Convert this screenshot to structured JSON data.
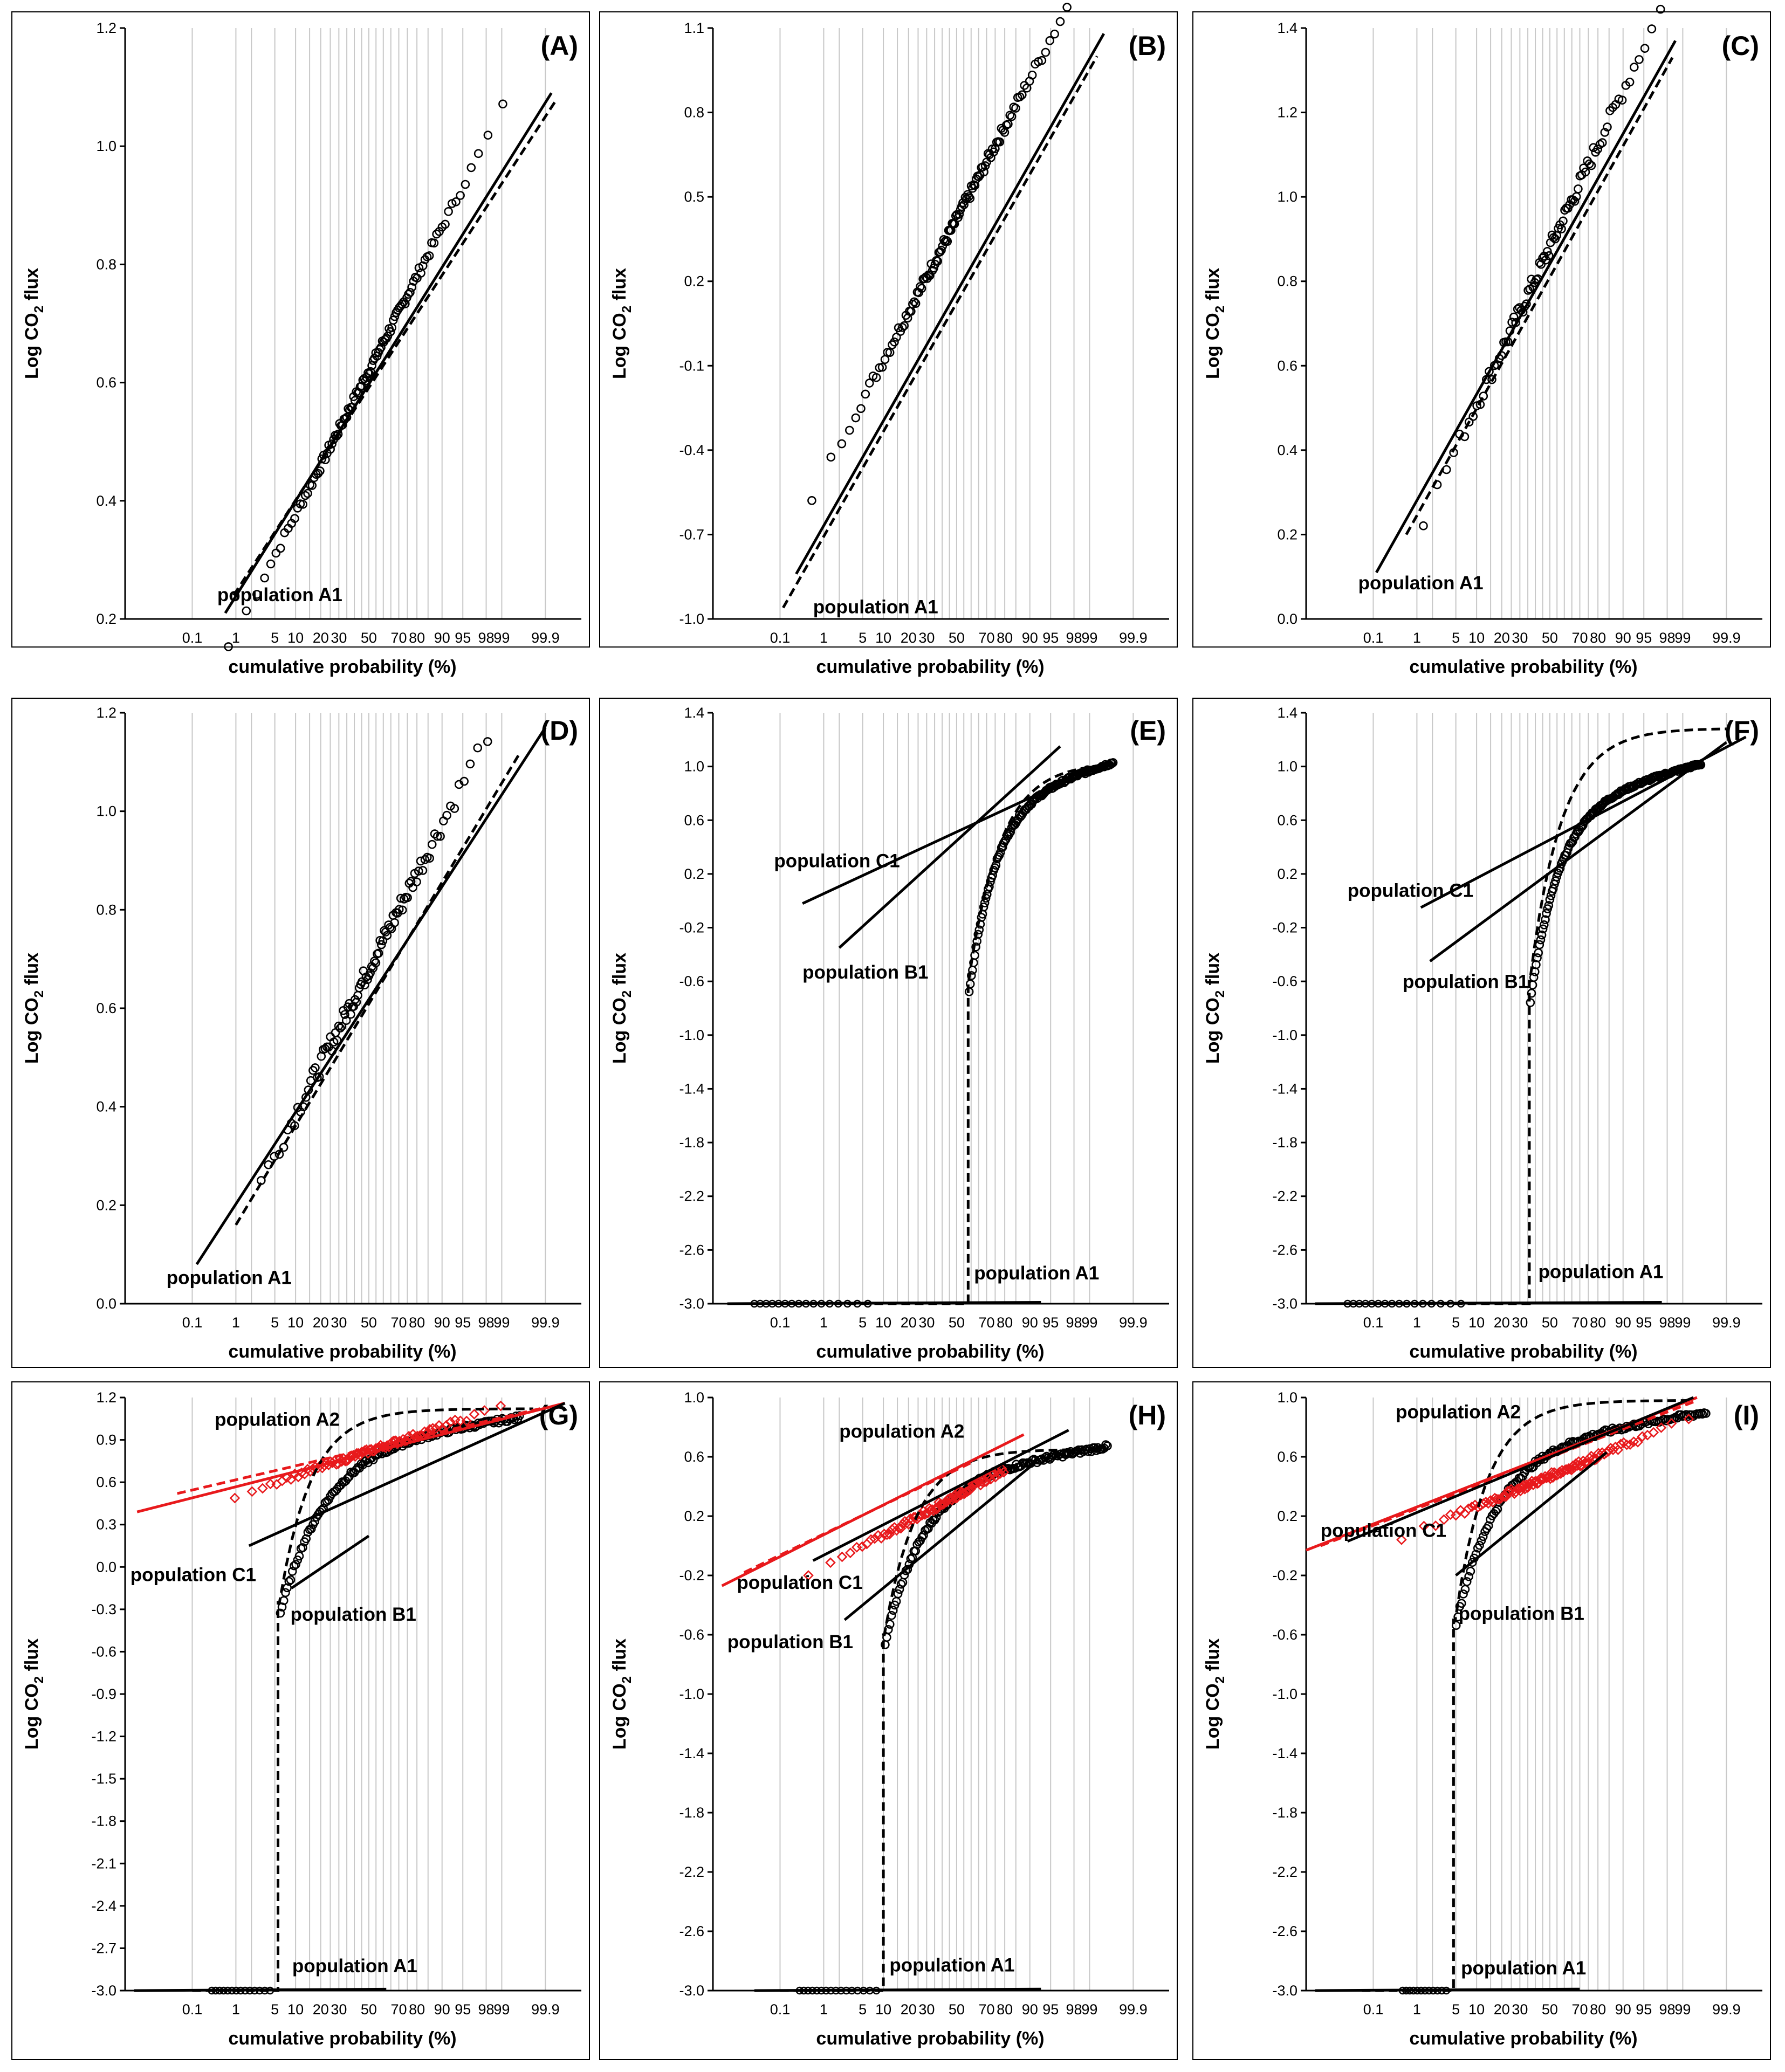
{
  "colors": {
    "black": "#000000",
    "red": "#e8191c",
    "grid": "#c8c8c8"
  },
  "x_axis": {
    "label": "cumulative probability (%)",
    "tick_labels": [
      "0.1",
      "1",
      "5",
      "10",
      "20",
      "30",
      "50",
      "70",
      "80",
      "90",
      "95",
      "98",
      "99",
      "99.9"
    ],
    "tick_values": [
      0.1,
      1,
      5,
      10,
      20,
      30,
      50,
      70,
      80,
      90,
      95,
      98,
      99,
      99.9
    ],
    "range_percent": [
      0.001,
      99.99
    ]
  },
  "y_axis_label": {
    "prefix": "Log CO",
    "subscript": "2",
    "suffix": " flux"
  },
  "chart_data": [
    {
      "id": "A",
      "title": "(A)",
      "type": "scatter",
      "y_ticks": [
        "0.2",
        "0.4",
        "0.6",
        "0.8",
        "1.0",
        "1.2"
      ],
      "ylim": [
        0.2,
        1.2
      ],
      "points": {
        "p_min": 0.25,
        "p_max": 99.5,
        "intercept": 0.62,
        "slope": 0.19,
        "n": 110,
        "noise": 0.008
      },
      "fit_lines": [
        {
          "name": "fit",
          "style": "solid",
          "color": "#000000",
          "p0": 0.6,
          "y0": 0.21,
          "p1": 99.93,
          "y1": 1.09
        },
        {
          "name": "cumulative",
          "style": "dashed",
          "color": "#000000",
          "p0": 0.9,
          "y0": 0.24,
          "p1": 99.95,
          "y1": 1.08
        }
      ],
      "labels": [
        {
          "text": "population A1",
          "p": 0.4,
          "y": 0.23
        }
      ]
    },
    {
      "id": "B",
      "title": "(B)",
      "type": "scatter",
      "y_ticks": [
        "-1.0",
        "-0.7",
        "-0.4",
        "-0.1",
        "0.2",
        "0.5",
        "0.8",
        "1.1"
      ],
      "ylim": [
        -1.0,
        1.1
      ],
      "points": {
        "p_min": 0.15,
        "p_max": 99.4,
        "intercept": 0.42,
        "slope": 0.39,
        "n": 120,
        "noise": 0.02
      },
      "fit_lines": [
        {
          "name": "fit",
          "style": "solid",
          "color": "#000000",
          "p0": 0.25,
          "y0": -0.84,
          "p1": 99.5,
          "y1": 1.08
        },
        {
          "name": "cumulative",
          "style": "dashed",
          "color": "#000000",
          "p0": 0.12,
          "y0": -0.96,
          "p1": 99.3,
          "y1": 1.0
        }
      ],
      "labels": [
        {
          "text": "population A1",
          "p": 0.6,
          "y": -0.98
        }
      ]
    },
    {
      "id": "C",
      "title": "(C)",
      "type": "scatter",
      "y_ticks": [
        "0.0",
        "0.2",
        "0.4",
        "0.6",
        "0.8",
        "1.0",
        "1.2",
        "1.4"
      ],
      "ylim": [
        0.0,
        1.4
      ],
      "points": {
        "p_min": 0.8,
        "p_max": 99.0,
        "intercept": 0.88,
        "slope": 0.29,
        "n": 90,
        "noise": 0.02
      },
      "fit_lines": [
        {
          "name": "fit",
          "style": "solid",
          "color": "#000000",
          "p0": 0.12,
          "y0": 0.11,
          "p1": 98.6,
          "y1": 1.37
        },
        {
          "name": "cumulative",
          "style": "dashed",
          "color": "#000000",
          "p0": 0.6,
          "y0": 0.2,
          "p1": 98.4,
          "y1": 1.33
        }
      ],
      "labels": [
        {
          "text": "population A1",
          "p": 0.04,
          "y": 0.07
        }
      ]
    },
    {
      "id": "D",
      "title": "(D)",
      "type": "scatter",
      "y_ticks": [
        "0.0",
        "0.2",
        "0.4",
        "0.6",
        "0.8",
        "1.0",
        "1.2"
      ],
      "ylim": [
        0.0,
        1.2
      ],
      "points": {
        "p_min": 2.5,
        "p_max": 98.6,
        "intercept": 0.68,
        "slope": 0.23,
        "n": 100,
        "noise": 0.02
      },
      "fit_lines": [
        {
          "name": "fit",
          "style": "solid",
          "color": "#000000",
          "p0": 0.13,
          "y0": 0.08,
          "p1": 99.9,
          "y1": 1.17
        },
        {
          "name": "cumulative",
          "style": "dashed",
          "color": "#000000",
          "p0": 1.0,
          "y0": 0.16,
          "p1": 99.6,
          "y1": 1.12
        }
      ],
      "labels": [
        {
          "text": "population A1",
          "p": 0.02,
          "y": 0.04
        }
      ]
    },
    {
      "id": "E",
      "title": "(E)",
      "type": "scatter",
      "y_ticks": [
        "-3.0",
        "-2.6",
        "-2.2",
        "-1.8",
        "-1.4",
        "-1.0",
        "-0.6",
        "-0.2",
        "0.2",
        "0.6",
        "1.0",
        "1.4"
      ],
      "ylim": [
        -3.0,
        1.4
      ],
      "points": {
        "zero_from": 0.02,
        "zero_to": 6,
        "zero_n": 16,
        "floor": -3.0,
        "jump_p": 58,
        "p_max": 99.7,
        "n": 130,
        "y_lo": -0.72,
        "y_hi": 1.03,
        "mid_y": 0.46,
        "curve": 2.2,
        "noise": 0.012
      },
      "fit_lines": [
        {
          "name": "population C1",
          "style": "solid",
          "color": "#000000",
          "p0": 0.35,
          "y0": -0.02,
          "p1": 97.5,
          "y1": 0.9
        },
        {
          "name": "population B1",
          "style": "solid",
          "color": "#000000",
          "p0": 2.0,
          "y0": -0.35,
          "p1": 96.5,
          "y1": 1.15
        },
        {
          "name": "population A1",
          "style": "solid",
          "color": "#000000",
          "p0": 0.003,
          "y0": -3.0,
          "p1": 93.0,
          "y1": -2.99
        }
      ],
      "cumulative": {
        "floor_p0": 0.1,
        "floor_p1": 57,
        "floor": -3.0,
        "jump_p": 58,
        "join_y": -0.6,
        "p_max": 99.2,
        "y_end": 1.0
      },
      "labels": [
        {
          "text": "population C1",
          "p": 0.07,
          "y": 0.25
        },
        {
          "text": "population B1",
          "p": 0.35,
          "y": -0.58
        },
        {
          "text": "population A1",
          "p": 62,
          "y": -2.82
        }
      ]
    },
    {
      "id": "F",
      "title": "(F)",
      "type": "scatter",
      "y_ticks": [
        "-3.0",
        "-2.6",
        "-2.2",
        "-1.8",
        "-1.4",
        "-1.0",
        "-0.6",
        "-0.2",
        "0.2",
        "0.6",
        "1.0",
        "1.4"
      ],
      "ylim": [
        -3.0,
        1.4
      ],
      "points": {
        "zero_from": 0.02,
        "zero_to": 6,
        "zero_n": 16,
        "floor": -3.0,
        "jump_p": 36,
        "p_max": 99.6,
        "n": 150,
        "y_lo": -0.78,
        "y_hi": 1.02,
        "mid_y": 0.55,
        "curve": 2.0,
        "noise": 0.01
      },
      "fit_lines": [
        {
          "name": "population C1",
          "style": "solid",
          "color": "#000000",
          "p0": 1.2,
          "y0": -0.05,
          "p1": 99.97,
          "y1": 1.22
        },
        {
          "name": "population B1",
          "style": "solid",
          "color": "#000000",
          "p0": 1.8,
          "y0": -0.45,
          "p1": 99.9,
          "y1": 1.18
        },
        {
          "name": "population A1",
          "style": "solid",
          "color": "#000000",
          "p0": 0.002,
          "y0": -3.0,
          "p1": 97.5,
          "y1": -2.99
        }
      ],
      "cumulative": {
        "floor_p0": 0.1,
        "floor_p1": 35,
        "floor": -3.0,
        "jump_p": 36,
        "join_y": -0.6,
        "p_max": 99.9,
        "y_end": 1.28
      },
      "labels": [
        {
          "text": "population C1",
          "p": 0.02,
          "y": 0.03
        },
        {
          "text": "population B1",
          "p": 0.5,
          "y": -0.65
        },
        {
          "text": "population A1",
          "p": 42,
          "y": -2.81
        }
      ]
    },
    {
      "id": "G",
      "title": "(G)",
      "type": "scatter",
      "y_ticks": [
        "-3.0",
        "-2.7",
        "-2.4",
        "-2.1",
        "-1.8",
        "-1.5",
        "-1.2",
        "-0.9",
        "-0.6",
        "-0.3",
        "0.0",
        "0.3",
        "0.6",
        "0.9",
        "1.2"
      ],
      "ylim": [
        -3.0,
        1.2
      ],
      "points": {
        "zero_from": 0.3,
        "zero_to": 4.2,
        "zero_n": 14,
        "floor": -3.0,
        "jump_p": 5.6,
        "p_max": 99.6,
        "n": 140,
        "y_lo": -0.35,
        "y_hi": 1.06,
        "mid_y": 0.52,
        "curve": 1.3,
        "noise": 0.015
      },
      "red_points": {
        "p_min": 0.4,
        "p_max": 99.5,
        "intercept": 0.82,
        "slope": 0.135,
        "n": 90,
        "noise": 0.018
      },
      "fit_lines": [
        {
          "name": "population A2",
          "style": "solid",
          "color": "#e8191c",
          "p0": 0.0025,
          "y0": 0.39,
          "p1": 99.97,
          "y1": 1.16
        },
        {
          "name": "population A2 cumulative",
          "style": "dashed",
          "color": "#e8191c",
          "p0": 0.04,
          "y0": 0.52,
          "p1": 99.9,
          "y1": 1.13
        },
        {
          "name": "population C1",
          "style": "solid",
          "color": "#000000",
          "p0": 1.8,
          "y0": 0.15,
          "p1": 99.97,
          "y1": 1.16
        },
        {
          "name": "population B1",
          "style": "solid",
          "color": "#000000",
          "p0": 8.8,
          "y0": -0.15,
          "p1": 50,
          "y1": 0.22
        },
        {
          "name": "population A1",
          "style": "solid",
          "color": "#000000",
          "p0": 0.002,
          "y0": -3.0,
          "p1": 62,
          "y1": -2.99
        }
      ],
      "cumulative": {
        "floor_p0": 0.1,
        "floor_p1": 5.3,
        "floor": -3.0,
        "jump_p": 5.6,
        "join_y": -0.25,
        "p_max": 99.8,
        "y_end": 1.12
      },
      "labels": [
        {
          "text": "population A2",
          "p": 0.35,
          "y": 1.0
        },
        {
          "text": "population C1",
          "p": 0.0015,
          "y": -0.1
        },
        {
          "text": "population B1",
          "p": 8.5,
          "y": -0.38
        },
        {
          "text": "population A1",
          "p": 9,
          "y": -2.87
        }
      ]
    },
    {
      "id": "H",
      "title": "(H)",
      "type": "scatter",
      "y_ticks": [
        "-3.0",
        "-2.6",
        "-2.2",
        "-1.8",
        "-1.4",
        "-1.0",
        "-0.6",
        "-0.2",
        "0.2",
        "0.6",
        "1.0"
      ],
      "ylim": [
        -3.0,
        1.0
      ],
      "points": {
        "zero_from": 0.3,
        "zero_to": 8,
        "zero_n": 16,
        "floor": -3.0,
        "jump_p": 10,
        "p_max": 99.6,
        "n": 140,
        "y_lo": -0.68,
        "y_hi": 0.67,
        "mid_y": 0.2,
        "curve": 1.5,
        "noise": 0.015
      },
      "red_points": {
        "p_min": 0.03,
        "p_max": 80,
        "intercept": 0.34,
        "slope": 0.21,
        "n": 90,
        "noise": 0.02
      },
      "fit_lines": [
        {
          "name": "population A2",
          "style": "solid",
          "color": "#e8191c",
          "p0": 0.002,
          "y0": -0.27,
          "p1": 88,
          "y1": 0.75
        },
        {
          "name": "population A2 cumulative",
          "style": "dashed",
          "color": "#e8191c",
          "p0": 0.01,
          "y0": -0.18,
          "p1": 60,
          "y1": 0.56
        },
        {
          "name": "population C1",
          "style": "solid",
          "color": "#000000",
          "p0": 0.6,
          "y0": -0.1,
          "p1": 97.5,
          "y1": 0.78
        },
        {
          "name": "population B1",
          "style": "solid",
          "color": "#000000",
          "p0": 2.5,
          "y0": -0.5,
          "p1": 91,
          "y1": 0.55
        },
        {
          "name": "population A1",
          "style": "solid",
          "color": "#000000",
          "p0": 0.02,
          "y0": -3.0,
          "p1": 93,
          "y1": -2.99
        }
      ],
      "cumulative": {
        "floor_p0": 0.1,
        "floor_p1": 9.5,
        "floor": -3.0,
        "jump_p": 10,
        "join_y": -0.6,
        "p_max": 99.6,
        "y_end": 0.65
      },
      "labels": [
        {
          "text": "population A2",
          "p": 2.0,
          "y": 0.73
        },
        {
          "text": "population C1",
          "p": 0.006,
          "y": -0.29
        },
        {
          "text": "population B1",
          "p": 0.003,
          "y": -0.69
        },
        {
          "text": "population A1",
          "p": 12,
          "y": -2.87
        }
      ]
    },
    {
      "id": "I",
      "title": "(I)",
      "type": "scatter",
      "y_ticks": [
        "-3.0",
        "-2.6",
        "-2.2",
        "-1.8",
        "-1.4",
        "-1.0",
        "-0.6",
        "-0.2",
        "0.2",
        "0.6",
        "1.0"
      ],
      "ylim": [
        -3.0,
        1.0
      ],
      "points": {
        "zero_from": 0.5,
        "zero_to": 3.5,
        "zero_n": 12,
        "floor": -3.0,
        "jump_p": 4.6,
        "p_max": 99.7,
        "n": 140,
        "y_lo": -0.55,
        "y_hi": 0.9,
        "mid_y": 0.36,
        "curve": 1.4,
        "noise": 0.015
      },
      "red_points": {
        "p_min": 0.02,
        "p_max": 99.7,
        "intercept": 0.47,
        "slope": 0.16,
        "n": 110,
        "noise": 0.02
      },
      "fit_lines": [
        {
          "name": "population A2",
          "style": "solid",
          "color": "#e8191c",
          "p0": 0.001,
          "y0": -0.03,
          "p1": 99.5,
          "y1": 1.0
        },
        {
          "name": "population A2 cumulative",
          "style": "dashed",
          "color": "#e8191c",
          "p0": 0.003,
          "y0": 0.0,
          "p1": 99.4,
          "y1": 0.97
        },
        {
          "name": "population C1",
          "style": "solid",
          "color": "#000000",
          "p0": 0.02,
          "y0": 0.03,
          "p1": 99.4,
          "y1": 1.0
        },
        {
          "name": "population B1",
          "style": "solid",
          "color": "#000000",
          "p0": 5.0,
          "y0": -0.2,
          "p1": 84,
          "y1": 0.63
        },
        {
          "name": "population A1",
          "style": "solid",
          "color": "#000000",
          "p0": 0.002,
          "y0": -3.0,
          "p1": 70,
          "y1": -2.99
        }
      ],
      "cumulative": {
        "floor_p0": 0.05,
        "floor_p1": 4.4,
        "floor": -3.0,
        "jump_p": 4.6,
        "join_y": -0.5,
        "p_max": 99.4,
        "y_end": 0.98
      },
      "labels": [
        {
          "text": "population A2",
          "p": 0.35,
          "y": 0.86
        },
        {
          "text": "population C1",
          "p": 0.003,
          "y": 0.06
        },
        {
          "text": "population B1",
          "p": 5.5,
          "y": -0.5
        },
        {
          "text": "population A1",
          "p": 6,
          "y": -2.89
        }
      ]
    }
  ]
}
